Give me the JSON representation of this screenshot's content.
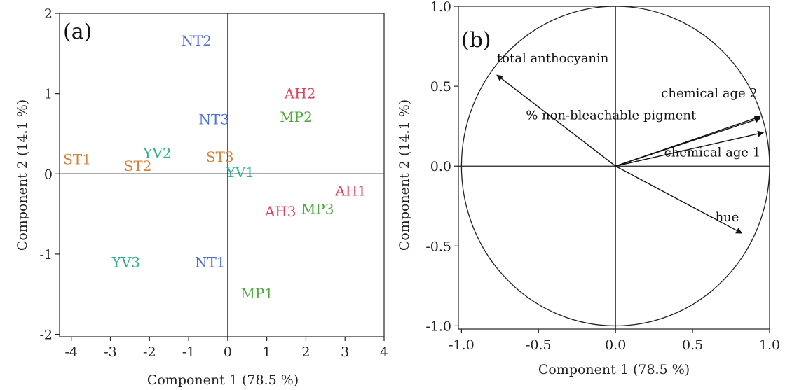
{
  "colors": {
    "NT": "#4f6fd6",
    "ST": "#d0833e",
    "YV": "#2fb08c",
    "AH": "#d9425a",
    "MP": "#4ea83c",
    "axis": "#222222"
  },
  "chart_data": [
    {
      "type": "scatter",
      "panel_label": "(a)",
      "xlabel": "Component 1  (78.5 %)",
      "ylabel": "Component 2  (14.1 %)",
      "xlim": [
        -4.3,
        4
      ],
      "ylim": [
        -2.03,
        2
      ],
      "x_ticks": [
        "-4",
        "-3",
        "-2",
        "-1",
        "0",
        "1",
        "2",
        "3",
        "4"
      ],
      "y_ticks": [
        "-2",
        "-1",
        "0",
        "1",
        "2"
      ],
      "points": [
        {
          "label": "NT2",
          "x": -0.8,
          "y": 1.66,
          "group": "NT"
        },
        {
          "label": "NT3",
          "x": -0.35,
          "y": 0.68,
          "group": "NT"
        },
        {
          "label": "NT1",
          "x": -0.45,
          "y": -1.1,
          "group": "NT"
        },
        {
          "label": "ST1",
          "x": -3.85,
          "y": 0.18,
          "group": "ST"
        },
        {
          "label": "ST2",
          "x": -2.3,
          "y": 0.1,
          "group": "ST"
        },
        {
          "label": "ST3",
          "x": -0.2,
          "y": 0.21,
          "group": "ST"
        },
        {
          "label": "YV2",
          "x": -1.8,
          "y": 0.26,
          "group": "YV"
        },
        {
          "label": "YV1",
          "x": 0.32,
          "y": 0.02,
          "group": "YV"
        },
        {
          "label": "YV3",
          "x": -2.6,
          "y": -1.1,
          "group": "YV"
        },
        {
          "label": "AH2",
          "x": 1.85,
          "y": 1.0,
          "group": "AH"
        },
        {
          "label": "AH1",
          "x": 3.15,
          "y": -0.21,
          "group": "AH"
        },
        {
          "label": "AH3",
          "x": 1.35,
          "y": -0.47,
          "group": "AH"
        },
        {
          "label": "MP2",
          "x": 1.75,
          "y": 0.71,
          "group": "MP"
        },
        {
          "label": "MP3",
          "x": 2.3,
          "y": -0.44,
          "group": "MP"
        },
        {
          "label": "MP1",
          "x": 0.75,
          "y": -1.49,
          "group": "MP"
        }
      ]
    },
    {
      "type": "loading_plot",
      "panel_label": "(b)",
      "xlabel": "Component 1  (78.5 %)",
      "ylabel": "Component 2  (14.1 %)",
      "xlim": [
        -1.02,
        1.0
      ],
      "ylim": [
        -1.02,
        1.0
      ],
      "x_ticks": [
        "-1.0",
        "-0.5",
        "0.0",
        "0.5",
        "1.0"
      ],
      "y_ticks": [
        "-1.0",
        "-0.5",
        "0.0",
        "0.5",
        "1.0"
      ],
      "unit_circle": true,
      "vectors": [
        {
          "label": "total anthocyanin",
          "x": -0.77,
          "y": 0.57
        },
        {
          "label": "chemical age 2",
          "x": 0.94,
          "y": 0.3
        },
        {
          "label": "% non-bleachable pigment",
          "x": 0.94,
          "y": 0.31
        },
        {
          "label": "chemical age 1",
          "x": 0.96,
          "y": 0.21
        },
        {
          "label": "hue",
          "x": 0.82,
          "y": -0.42
        }
      ]
    }
  ]
}
